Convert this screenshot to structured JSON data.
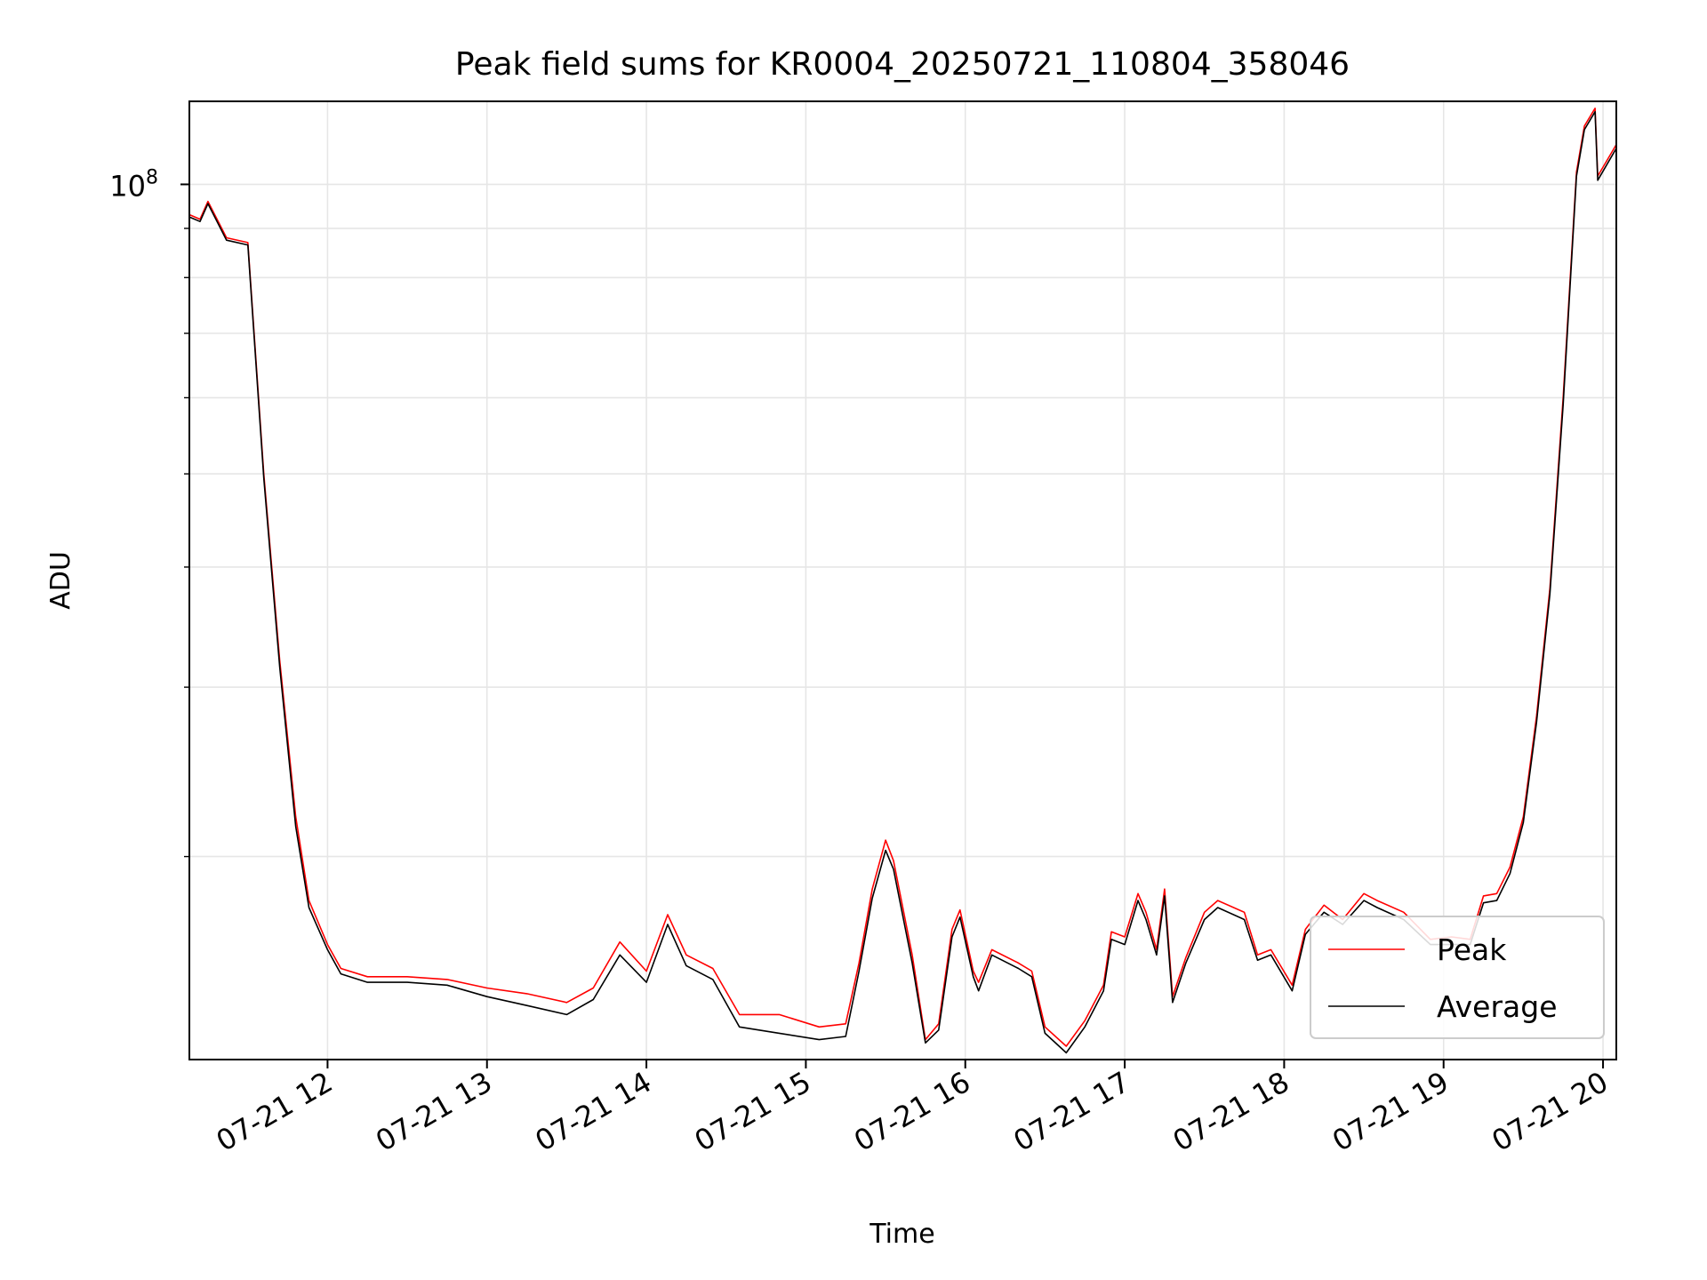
{
  "chart_data": {
    "type": "line",
    "title": "Peak field sums for KR0004_20250721_110804_358046",
    "xlabel": "Time",
    "ylabel": "ADU",
    "y_scale": "log",
    "ylim": [
      12300000,
      122000000
    ],
    "x_range": [
      "2025-07-21 11:08",
      "2025-07-21 20:05"
    ],
    "grid": true,
    "legend_position": "lower-right",
    "y_tick_labels": [
      {
        "value": 100000000,
        "base": "10",
        "exp": "8"
      }
    ],
    "x_tick_labels": [
      {
        "x": "2025-07-21 12:00",
        "label": "07-21 12"
      },
      {
        "x": "2025-07-21 13:00",
        "label": "07-21 13"
      },
      {
        "x": "2025-07-21 14:00",
        "label": "07-21 14"
      },
      {
        "x": "2025-07-21 15:00",
        "label": "07-21 15"
      },
      {
        "x": "2025-07-21 16:00",
        "label": "07-21 16"
      },
      {
        "x": "2025-07-21 17:00",
        "label": "07-21 17"
      },
      {
        "x": "2025-07-21 18:00",
        "label": "07-21 18"
      },
      {
        "x": "2025-07-21 19:00",
        "label": "07-21 19"
      },
      {
        "x": "2025-07-21 20:00",
        "label": "07-21 20"
      }
    ],
    "series": [
      {
        "name": "Peak",
        "color": "#ff0000",
        "points": [
          [
            "2025-07-21 11:08",
            93000000
          ],
          [
            "2025-07-21 11:12",
            92000000
          ],
          [
            "2025-07-21 11:15",
            96000000
          ],
          [
            "2025-07-21 11:22",
            88000000
          ],
          [
            "2025-07-21 11:30",
            87000000
          ],
          [
            "2025-07-21 11:36",
            50000000
          ],
          [
            "2025-07-21 11:42",
            32000000
          ],
          [
            "2025-07-21 11:48",
            22000000
          ],
          [
            "2025-07-21 11:53",
            18000000
          ],
          [
            "2025-07-21 12:00",
            16200000
          ],
          [
            "2025-07-21 12:05",
            15300000
          ],
          [
            "2025-07-21 12:15",
            15000000
          ],
          [
            "2025-07-21 12:30",
            15000000
          ],
          [
            "2025-07-21 12:45",
            14900000
          ],
          [
            "2025-07-21 13:00",
            14600000
          ],
          [
            "2025-07-21 13:15",
            14400000
          ],
          [
            "2025-07-21 13:30",
            14100000
          ],
          [
            "2025-07-21 13:40",
            14600000
          ],
          [
            "2025-07-21 13:50",
            16300000
          ],
          [
            "2025-07-21 14:00",
            15200000
          ],
          [
            "2025-07-21 14:08",
            17400000
          ],
          [
            "2025-07-21 14:15",
            15800000
          ],
          [
            "2025-07-21 14:25",
            15300000
          ],
          [
            "2025-07-21 14:35",
            13700000
          ],
          [
            "2025-07-21 14:50",
            13700000
          ],
          [
            "2025-07-21 15:05",
            13300000
          ],
          [
            "2025-07-21 15:15",
            13400000
          ],
          [
            "2025-07-21 15:20",
            15500000
          ],
          [
            "2025-07-21 15:25",
            18500000
          ],
          [
            "2025-07-21 15:30",
            20800000
          ],
          [
            "2025-07-21 15:33",
            19800000
          ],
          [
            "2025-07-21 15:40",
            15800000
          ],
          [
            "2025-07-21 15:45",
            12900000
          ],
          [
            "2025-07-21 15:50",
            13400000
          ],
          [
            "2025-07-21 15:55",
            16800000
          ],
          [
            "2025-07-21 15:58",
            17600000
          ],
          [
            "2025-07-21 16:03",
            15200000
          ],
          [
            "2025-07-21 16:05",
            14800000
          ],
          [
            "2025-07-21 16:10",
            16000000
          ],
          [
            "2025-07-21 16:20",
            15500000
          ],
          [
            "2025-07-21 16:25",
            15200000
          ],
          [
            "2025-07-21 16:30",
            13300000
          ],
          [
            "2025-07-21 16:38",
            12700000
          ],
          [
            "2025-07-21 16:45",
            13500000
          ],
          [
            "2025-07-21 16:52",
            14700000
          ],
          [
            "2025-07-21 16:55",
            16700000
          ],
          [
            "2025-07-21 17:00",
            16500000
          ],
          [
            "2025-07-21 17:05",
            18300000
          ],
          [
            "2025-07-21 17:08",
            17500000
          ],
          [
            "2025-07-21 17:12",
            16000000
          ],
          [
            "2025-07-21 17:15",
            18500000
          ],
          [
            "2025-07-21 17:18",
            14300000
          ],
          [
            "2025-07-21 17:23",
            15700000
          ],
          [
            "2025-07-21 17:30",
            17500000
          ],
          [
            "2025-07-21 17:35",
            18000000
          ],
          [
            "2025-07-21 17:45",
            17500000
          ],
          [
            "2025-07-21 17:50",
            15800000
          ],
          [
            "2025-07-21 17:55",
            16000000
          ],
          [
            "2025-07-21 18:03",
            14700000
          ],
          [
            "2025-07-21 18:08",
            16800000
          ],
          [
            "2025-07-21 18:15",
            17800000
          ],
          [
            "2025-07-21 18:22",
            17200000
          ],
          [
            "2025-07-21 18:30",
            18300000
          ],
          [
            "2025-07-21 18:35",
            18000000
          ],
          [
            "2025-07-21 18:45",
            17500000
          ],
          [
            "2025-07-21 18:55",
            16400000
          ],
          [
            "2025-07-21 19:03",
            16500000
          ],
          [
            "2025-07-21 19:10",
            16400000
          ],
          [
            "2025-07-21 19:15",
            18200000
          ],
          [
            "2025-07-21 19:20",
            18300000
          ],
          [
            "2025-07-21 19:25",
            19500000
          ],
          [
            "2025-07-21 19:30",
            22000000
          ],
          [
            "2025-07-21 19:35",
            28000000
          ],
          [
            "2025-07-21 19:40",
            38000000
          ],
          [
            "2025-07-21 19:45",
            60000000
          ],
          [
            "2025-07-21 19:50",
            103000000
          ],
          [
            "2025-07-21 19:53",
            115000000
          ],
          [
            "2025-07-21 19:57",
            120000000
          ],
          [
            "2025-07-21 19:58",
            102000000
          ],
          [
            "2025-07-21 20:05",
            110000000
          ]
        ]
      },
      {
        "name": "Average",
        "color": "#000000",
        "points": [
          [
            "2025-07-21 11:08",
            92500000
          ],
          [
            "2025-07-21 11:12",
            91500000
          ],
          [
            "2025-07-21 11:15",
            95500000
          ],
          [
            "2025-07-21 11:22",
            87500000
          ],
          [
            "2025-07-21 11:30",
            86500000
          ],
          [
            "2025-07-21 11:36",
            49500000
          ],
          [
            "2025-07-21 11:42",
            31500000
          ],
          [
            "2025-07-21 11:48",
            21500000
          ],
          [
            "2025-07-21 11:53",
            17700000
          ],
          [
            "2025-07-21 12:00",
            16000000
          ],
          [
            "2025-07-21 12:05",
            15100000
          ],
          [
            "2025-07-21 12:15",
            14800000
          ],
          [
            "2025-07-21 12:30",
            14800000
          ],
          [
            "2025-07-21 12:45",
            14700000
          ],
          [
            "2025-07-21 13:00",
            14300000
          ],
          [
            "2025-07-21 13:15",
            14000000
          ],
          [
            "2025-07-21 13:30",
            13700000
          ],
          [
            "2025-07-21 13:40",
            14200000
          ],
          [
            "2025-07-21 13:50",
            15800000
          ],
          [
            "2025-07-21 14:00",
            14800000
          ],
          [
            "2025-07-21 14:08",
            17000000
          ],
          [
            "2025-07-21 14:15",
            15400000
          ],
          [
            "2025-07-21 14:25",
            14900000
          ],
          [
            "2025-07-21 14:35",
            13300000
          ],
          [
            "2025-07-21 14:50",
            13100000
          ],
          [
            "2025-07-21 15:05",
            12900000
          ],
          [
            "2025-07-21 15:15",
            13000000
          ],
          [
            "2025-07-21 15:20",
            15200000
          ],
          [
            "2025-07-21 15:25",
            18100000
          ],
          [
            "2025-07-21 15:30",
            20300000
          ],
          [
            "2025-07-21 15:33",
            19400000
          ],
          [
            "2025-07-21 15:40",
            15500000
          ],
          [
            "2025-07-21 15:45",
            12800000
          ],
          [
            "2025-07-21 15:50",
            13200000
          ],
          [
            "2025-07-21 15:55",
            16500000
          ],
          [
            "2025-07-21 15:58",
            17300000
          ],
          [
            "2025-07-21 16:03",
            15000000
          ],
          [
            "2025-07-21 16:05",
            14500000
          ],
          [
            "2025-07-21 16:10",
            15800000
          ],
          [
            "2025-07-21 16:20",
            15300000
          ],
          [
            "2025-07-21 16:25",
            15000000
          ],
          [
            "2025-07-21 16:30",
            13100000
          ],
          [
            "2025-07-21 16:38",
            12500000
          ],
          [
            "2025-07-21 16:45",
            13300000
          ],
          [
            "2025-07-21 16:52",
            14500000
          ],
          [
            "2025-07-21 16:55",
            16400000
          ],
          [
            "2025-07-21 17:00",
            16200000
          ],
          [
            "2025-07-21 17:05",
            18000000
          ],
          [
            "2025-07-21 17:08",
            17200000
          ],
          [
            "2025-07-21 17:12",
            15800000
          ],
          [
            "2025-07-21 17:15",
            18200000
          ],
          [
            "2025-07-21 17:18",
            14100000
          ],
          [
            "2025-07-21 17:23",
            15500000
          ],
          [
            "2025-07-21 17:30",
            17200000
          ],
          [
            "2025-07-21 17:35",
            17700000
          ],
          [
            "2025-07-21 17:45",
            17200000
          ],
          [
            "2025-07-21 17:50",
            15600000
          ],
          [
            "2025-07-21 17:55",
            15800000
          ],
          [
            "2025-07-21 18:03",
            14500000
          ],
          [
            "2025-07-21 18:08",
            16600000
          ],
          [
            "2025-07-21 18:15",
            17500000
          ],
          [
            "2025-07-21 18:22",
            17000000
          ],
          [
            "2025-07-21 18:30",
            18000000
          ],
          [
            "2025-07-21 18:35",
            17700000
          ],
          [
            "2025-07-21 18:45",
            17200000
          ],
          [
            "2025-07-21 18:55",
            16200000
          ],
          [
            "2025-07-21 19:03",
            16200000
          ],
          [
            "2025-07-21 19:10",
            16200000
          ],
          [
            "2025-07-21 19:15",
            17900000
          ],
          [
            "2025-07-21 19:20",
            18000000
          ],
          [
            "2025-07-21 19:25",
            19200000
          ],
          [
            "2025-07-21 19:30",
            21700000
          ],
          [
            "2025-07-21 19:35",
            27600000
          ],
          [
            "2025-07-21 19:40",
            37500000
          ],
          [
            "2025-07-21 19:45",
            59000000
          ],
          [
            "2025-07-21 19:50",
            102000000
          ],
          [
            "2025-07-21 19:53",
            114000000
          ],
          [
            "2025-07-21 19:57",
            119000000
          ],
          [
            "2025-07-21 19:58",
            101000000
          ],
          [
            "2025-07-21 20:05",
            109000000
          ]
        ]
      }
    ]
  }
}
